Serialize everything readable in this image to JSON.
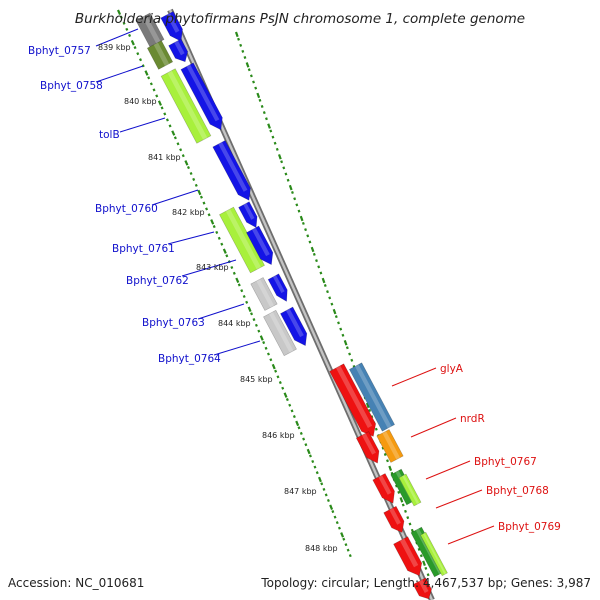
{
  "title": "Burkholderia phytofirmans PsJN chromosome 1, complete genome",
  "footer": {
    "accession": "Accession: NC_010681",
    "topology": "Topology: circular; Length: 4,467,537 bp; Genes: 3,987"
  },
  "colors": {
    "backbone": "#909090",
    "tick_dots": "#2a8a1a",
    "left_label": "#1010cc",
    "right_label": "#dd1111",
    "gene_blue": "#1414e6",
    "gene_lime": "#a8f03c",
    "gene_olive": "#6a8a32",
    "gene_gray": "#c8c8c8",
    "gene_dark_gray": "#7a7a7a",
    "gene_red": "#ee1111",
    "gene_steel": "#4682b4",
    "gene_orange": "#f59a10",
    "gene_green": "#2a9a2a"
  },
  "kbp_ticks": [
    "839 kbp",
    "840 kbp",
    "841 kbp",
    "842 kbp",
    "843 kbp",
    "844 kbp",
    "845 kbp",
    "846 kbp",
    "847 kbp",
    "848 kbp"
  ],
  "left_genes": [
    "Bphyt_0757",
    "Bphyt_0758",
    "tolB",
    "Bphyt_0760",
    "Bphyt_0761",
    "Bphyt_0762",
    "Bphyt_0763",
    "Bphyt_0764"
  ],
  "right_genes": [
    "glyA",
    "nrdR",
    "Bphyt_0767",
    "Bphyt_0768",
    "Bphyt_0769"
  ]
}
